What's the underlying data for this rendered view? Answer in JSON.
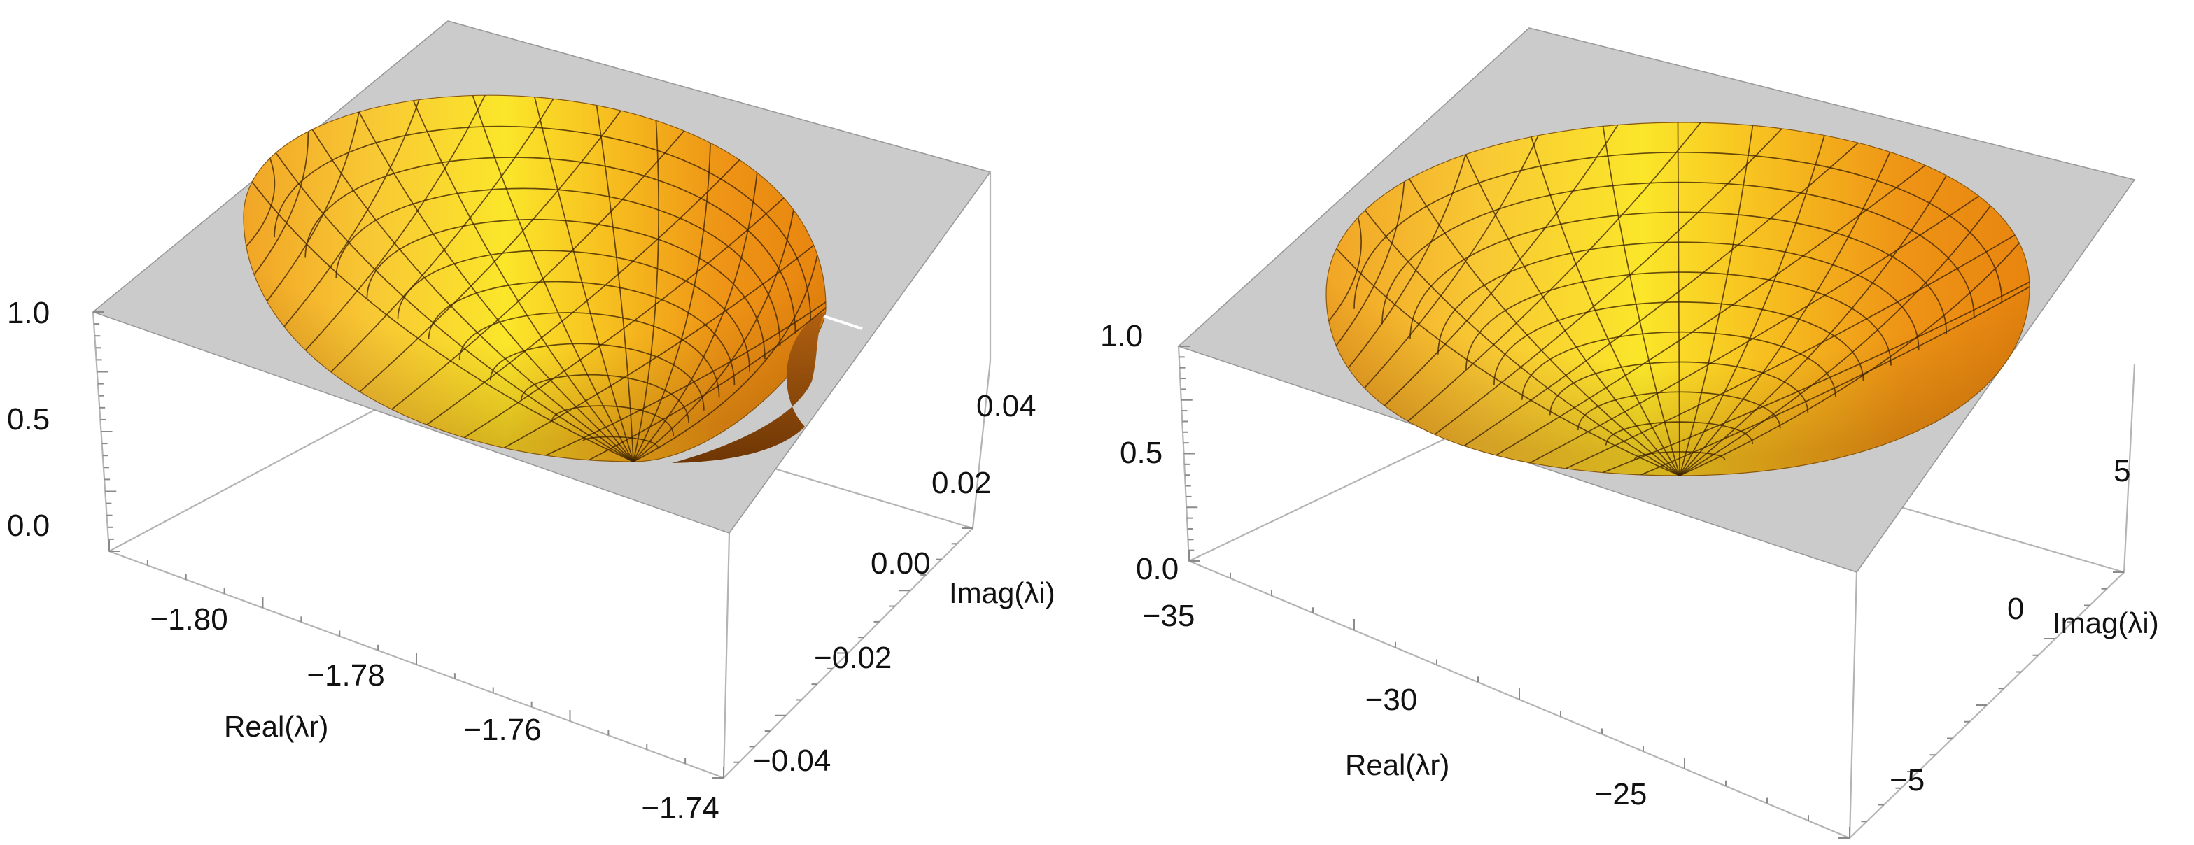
{
  "chart_data": [
    {
      "type": "surface3d",
      "xlabel": "Real(λr)",
      "ylabel": "Imag(λi)",
      "zlabel": "",
      "x_ticks": [
        "−1.80",
        "−1.78",
        "−1.76",
        "−1.74"
      ],
      "y_ticks": [
        "−0.04",
        "−0.02",
        "0.00",
        "0.02",
        "0.04"
      ],
      "z_ticks": [
        "0.0",
        "0.5",
        "1.0"
      ],
      "xlim": [
        -1.81,
        -1.74
      ],
      "ylim": [
        -0.05,
        0.05
      ],
      "zlim": [
        0,
        1
      ],
      "surface": "cardioid-shaped bowl",
      "colors": {
        "light": "#fbe62a",
        "mid": "#f4b225",
        "dark": "#d97410",
        "plane": "#cbcbcb"
      }
    },
    {
      "type": "surface3d",
      "xlabel": "Real(λr)",
      "ylabel": "Imag(λi)",
      "zlabel": "",
      "x_ticks": [
        "−35",
        "−30",
        "−25"
      ],
      "y_ticks": [
        "−5",
        "0",
        "5"
      ],
      "z_ticks": [
        "0.0",
        "0.5",
        "1.0"
      ],
      "xlim": [
        -36,
        -22
      ],
      "ylim": [
        -8,
        8
      ],
      "zlim": [
        0,
        1
      ],
      "surface": "round bowl",
      "colors": {
        "light": "#fbe62a",
        "mid": "#f4b225",
        "dark": "#d97410",
        "plane": "#cbcbcb"
      }
    }
  ]
}
